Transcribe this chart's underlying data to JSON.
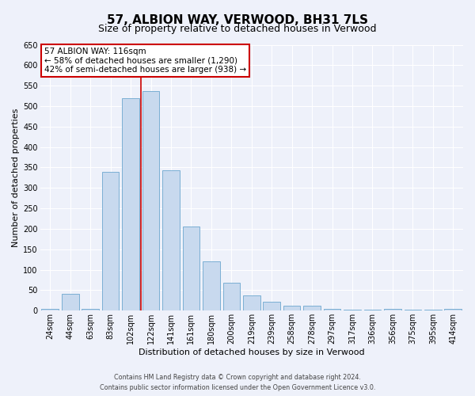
{
  "title": "57, ALBION WAY, VERWOOD, BH31 7LS",
  "subtitle": "Size of property relative to detached houses in Verwood",
  "xlabel": "Distribution of detached houses by size in Verwood",
  "ylabel": "Number of detached properties",
  "bin_labels": [
    "24sqm",
    "44sqm",
    "63sqm",
    "83sqm",
    "102sqm",
    "122sqm",
    "141sqm",
    "161sqm",
    "180sqm",
    "200sqm",
    "219sqm",
    "239sqm",
    "258sqm",
    "278sqm",
    "297sqm",
    "317sqm",
    "336sqm",
    "356sqm",
    "375sqm",
    "395sqm",
    "414sqm"
  ],
  "bar_heights": [
    5,
    42,
    5,
    340,
    520,
    537,
    343,
    205,
    120,
    68,
    38,
    22,
    13,
    13,
    5,
    2,
    2,
    5,
    2,
    2,
    5
  ],
  "bar_color": "#c8d9ee",
  "bar_edgecolor": "#7bafd4",
  "bar_width": 0.85,
  "vline_color": "#cc0000",
  "annotation_title": "57 ALBION WAY: 116sqm",
  "annotation_line1": "← 58% of detached houses are smaller (1,290)",
  "annotation_line2": "42% of semi-detached houses are larger (938) →",
  "annotation_box_facecolor": "#ffffff",
  "annotation_box_edgecolor": "#cc0000",
  "ylim": [
    0,
    650
  ],
  "yticks": [
    0,
    50,
    100,
    150,
    200,
    250,
    300,
    350,
    400,
    450,
    500,
    550,
    600,
    650
  ],
  "background_color": "#eef1fa",
  "plot_bg_color": "#eef1fa",
  "grid_color": "#ffffff",
  "footer_line1": "Contains HM Land Registry data © Crown copyright and database right 2024.",
  "footer_line2": "Contains public sector information licensed under the Open Government Licence v3.0.",
  "title_fontsize": 11,
  "subtitle_fontsize": 9,
  "axis_label_fontsize": 8,
  "tick_fontsize": 7,
  "annot_fontsize": 7.5
}
